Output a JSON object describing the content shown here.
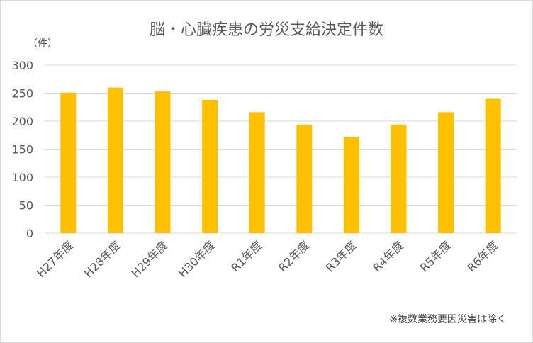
{
  "chart_data": {
    "type": "bar",
    "title": "脳・心臓疾患の労災支給決定件数",
    "unit_label": "（件）",
    "categories": [
      "H27年度",
      "H28年度",
      "H29年度",
      "H30年度",
      "R1年度",
      "R2年度",
      "R3年度",
      "R4年度",
      "R5年度",
      "R6年度"
    ],
    "series": [
      {
        "values": [
          251,
          260,
          253,
          238,
          216,
          194,
          172,
          194,
          216,
          241
        ]
      }
    ],
    "ylim": [
      0,
      300
    ],
    "yticks": [
      0,
      50,
      100,
      150,
      200,
      250,
      300
    ],
    "grid": true,
    "bar_color": "#FFC000",
    "grid_color": "#d9d9d9",
    "note": "※複数業務要因災害は除く"
  }
}
